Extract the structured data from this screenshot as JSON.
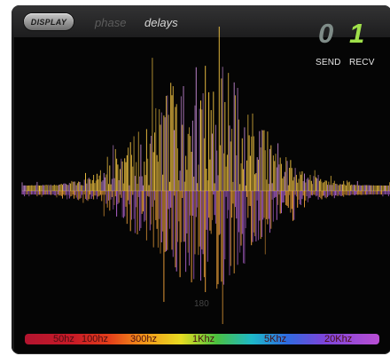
{
  "toolbar": {
    "display_button": "DISPLAY",
    "mode_phase": "phase",
    "mode_delays": "delays",
    "active_mode": "delays"
  },
  "io": {
    "send_value": "0",
    "recv_value": "1",
    "send_label": "SEND",
    "recv_label": "RECV"
  },
  "spectrum": {
    "marker_label": "180",
    "colors": {
      "upper_warm": "#f4c542",
      "upper_cool": "#c68ad6",
      "lower_warm": "#f0a33a",
      "lower_cool": "#b667d6"
    }
  },
  "legend": {
    "labels": [
      "50hz",
      "100hz",
      "300hz",
      "1Khz",
      "5Khz",
      "20Khz"
    ],
    "gradient_colors": [
      "#b3142f",
      "#f39a1a",
      "#e8dc22",
      "#4bc13f",
      "#1eb9c9",
      "#2f6be0",
      "#b94ed3"
    ]
  }
}
